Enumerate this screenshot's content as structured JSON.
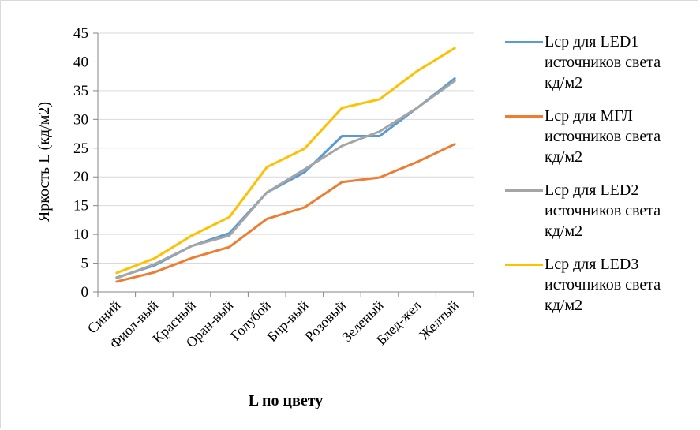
{
  "chart_data": {
    "type": "line",
    "ylabel": "Яркость L (кд/м2)",
    "xlabel": "L по цвету",
    "ylim": [
      0,
      45
    ],
    "ytick_step": 5,
    "yticks": [
      "0",
      "5",
      "10",
      "15",
      "20",
      "25",
      "30",
      "35",
      "40",
      "45"
    ],
    "grid": true,
    "legend_position": "right",
    "categories": [
      "Синий",
      "Фиол-вый",
      "Красный",
      "Оран-вый",
      "Голубой",
      "Бир-вый",
      "Розовый",
      "Зеленый",
      "Блед-жел",
      "Желтый"
    ],
    "series": [
      {
        "name": "Lср  для LED1\nисточников света\nкд/м2",
        "color": "#5B9BD5",
        "values": [
          2.5,
          4.6,
          8.0,
          10.2,
          17.3,
          20.8,
          27.1,
          27.1,
          32.0,
          37.1
        ]
      },
      {
        "name": "Lср  для МГЛ\nисточников света\nкд/м2",
        "color": "#ED7D31",
        "values": [
          1.8,
          3.4,
          5.9,
          7.8,
          12.7,
          14.7,
          19.1,
          19.9,
          22.6,
          25.7
        ]
      },
      {
        "name": "Lср  для LED2\nисточников света\nкд/м2",
        "color": "#A5A5A5",
        "values": [
          2.4,
          4.8,
          8.0,
          9.8,
          17.3,
          21.3,
          25.4,
          27.9,
          32.0,
          36.7
        ]
      },
      {
        "name": "Lср  для LED3\nисточников света\nкд/м2",
        "color": "#FFC000",
        "values": [
          3.3,
          5.8,
          9.8,
          13.0,
          21.7,
          24.9,
          32.0,
          33.5,
          38.4,
          42.4
        ]
      }
    ]
  }
}
